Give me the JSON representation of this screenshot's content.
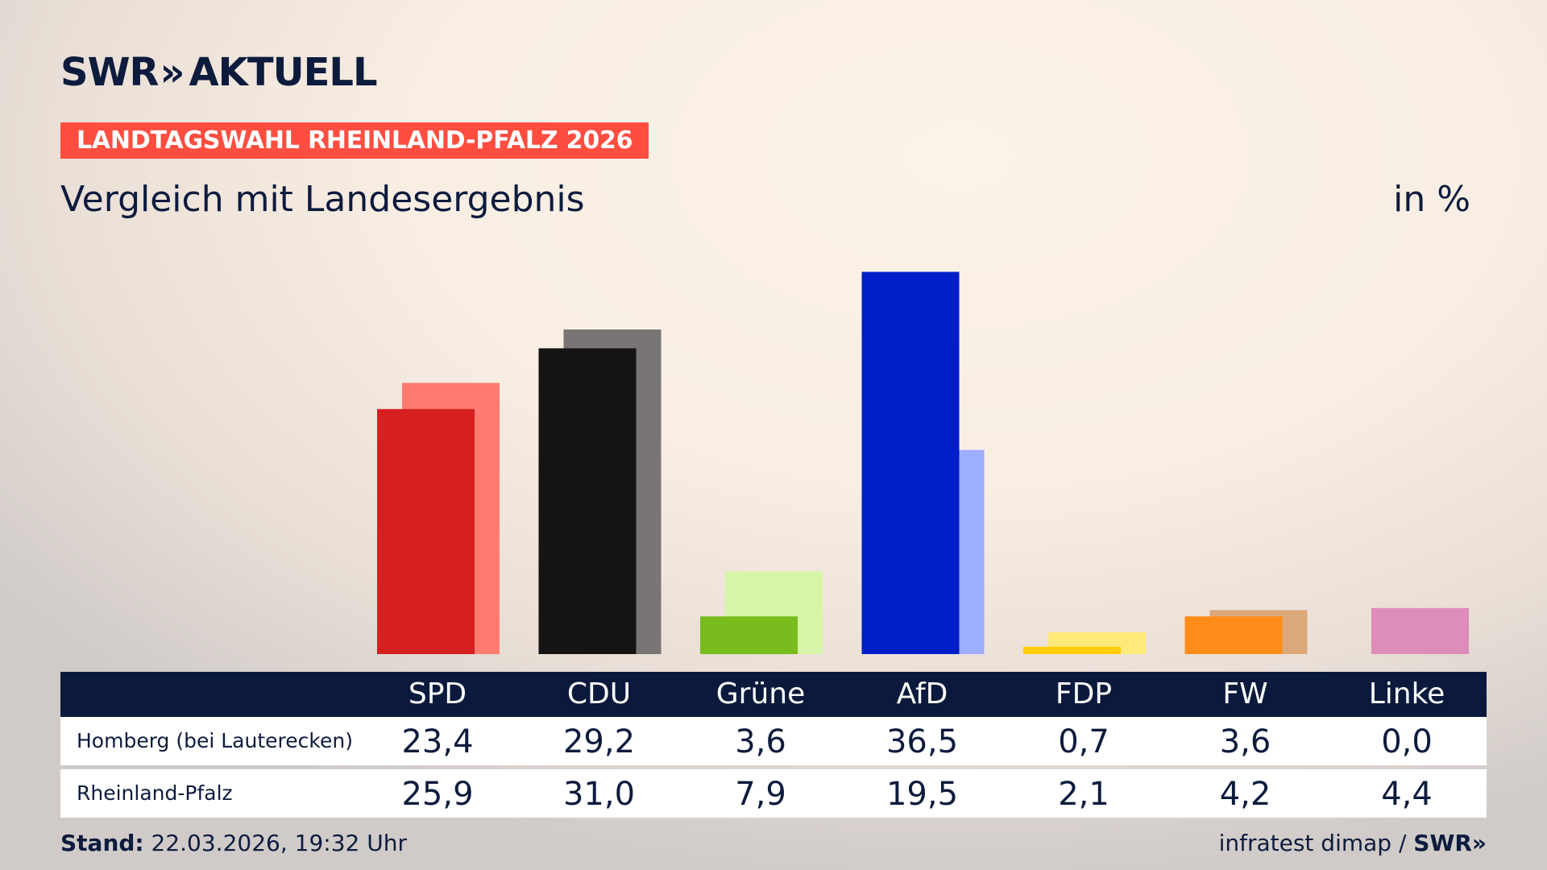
{
  "header": {
    "logo_prefix": "SWR",
    "logo_chevrons": "»",
    "logo_suffix": "AKTUELL",
    "badge": "LANDTAGSWAHL RHEINLAND-PFALZ 2026",
    "subtitle": "Vergleich mit Landesergebnis",
    "unit": "in %"
  },
  "chart_data": {
    "type": "bar",
    "categories": [
      "SPD",
      "CDU",
      "Grüne",
      "AfD",
      "FDP",
      "FW",
      "Linke"
    ],
    "series": [
      {
        "name": "Homberg (bei Lauterecken)",
        "values": [
          23.4,
          29.2,
          3.6,
          36.5,
          0.7,
          3.6,
          0.0
        ]
      },
      {
        "name": "Rheinland-Pfalz",
        "values": [
          25.9,
          31.0,
          7.9,
          19.5,
          2.1,
          4.2,
          4.4
        ]
      }
    ],
    "colors": {
      "primary": [
        "#d62020",
        "#141414",
        "#78bc1e",
        "#001ec8",
        "#ffcc00",
        "#ff8c1a",
        "#cc0066"
      ],
      "secondary": [
        "#ff7b72",
        "#787574",
        "#d6f5a8",
        "#9daeff",
        "#ffe97a",
        "#dca87a",
        "#de8cb9"
      ]
    },
    "ylim": [
      0,
      40
    ],
    "grid": false,
    "legend": "table-below"
  },
  "table": {
    "rows": [
      {
        "label": "Homberg (bei Lauterecken)",
        "values": [
          "23,4",
          "29,2",
          "3,6",
          "36,5",
          "0,7",
          "3,6",
          "0,0"
        ]
      },
      {
        "label": "Rheinland-Pfalz",
        "values": [
          "25,9",
          "31,0",
          "7,9",
          "19,5",
          "2,1",
          "4,2",
          "4,4"
        ]
      }
    ]
  },
  "footer": {
    "stand_label": "Stand:",
    "stand_value": " 22.03.2026, 19:32 Uhr",
    "source": "infratest dimap / ",
    "brand": "SWR»"
  }
}
